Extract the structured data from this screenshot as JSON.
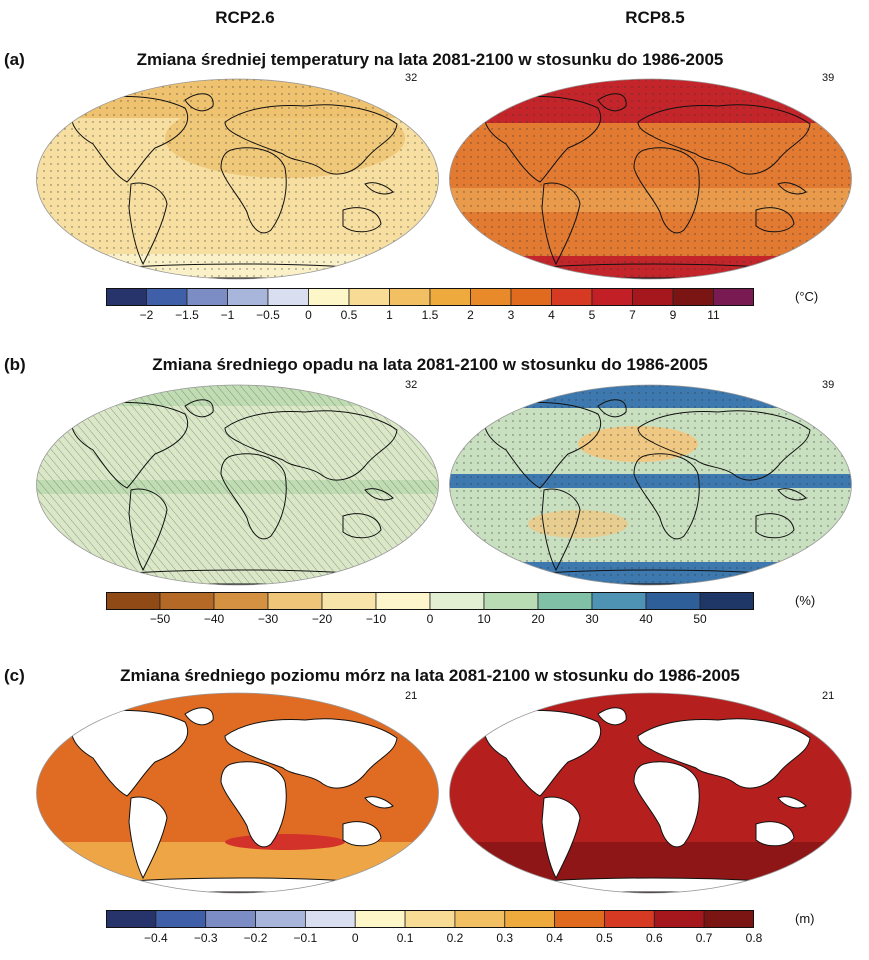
{
  "scenarios": {
    "left": "RCP2.6",
    "right": "RCP8.5"
  },
  "panels": [
    {
      "id": "a",
      "label": "(a)",
      "title": "Zmiana średniej temperatury na lata 2081-2100 w stosunku do 1986-2005",
      "model_counts": [
        "32",
        "39"
      ],
      "unit": "(°C)",
      "colorbar": {
        "colors": [
          "#27336b",
          "#3f5fa8",
          "#7c8cc4",
          "#a9b6db",
          "#d9dff0",
          "#fdf6c8",
          "#f8dc96",
          "#f2c062",
          "#eeaa3c",
          "#e88a2a",
          "#e06a1e",
          "#d63a22",
          "#c22026",
          "#a5171d",
          "#7a1513",
          "#7a1a52"
        ],
        "ticks": [
          "−2",
          "−1.5",
          "−1",
          "−0.5",
          "0",
          "0.5",
          "1",
          "1.5",
          "2",
          "3",
          "4",
          "5",
          "7",
          "9",
          "11"
        ]
      },
      "map_colors": {
        "left_base": "#f6dfa0",
        "left_accent": "#efc270",
        "left_cool": "#fbf1c8",
        "right_base": "#e27a32",
        "right_hot": "#c3252a",
        "right_warm": "#e99a4a"
      }
    },
    {
      "id": "b",
      "label": "(b)",
      "title": "Zmiana średniego opadu na lata 2081-2100 w stosunku do 1986-2005",
      "model_counts": [
        "32",
        "39"
      ],
      "unit": "(%)",
      "colorbar": {
        "colors": [
          "#8f4a16",
          "#b46a26",
          "#d49142",
          "#efc57a",
          "#f8e4a8",
          "#fdf6cc",
          "#e2efd2",
          "#b9dcb4",
          "#7fc0a6",
          "#4f93b4",
          "#2e5f99",
          "#1f3766"
        ],
        "ticks": [
          "−50",
          "−40",
          "−30",
          "−20",
          "−10",
          "0",
          "10",
          "20",
          "30",
          "40",
          "50"
        ]
      },
      "map_colors": {
        "left_base": "#dbe8c8",
        "left_accent": "#bfdcb2",
        "right_base": "#c8e0c0",
        "right_wet": "#3d79ae",
        "right_dry": "#efc883"
      }
    },
    {
      "id": "c",
      "label": "(c)",
      "title": "Zmiana średniego poziomu mórz na lata 2081-2100 w stosunku do 1986-2005",
      "model_counts": [
        "21",
        "21"
      ],
      "unit": "(m)",
      "colorbar": {
        "colors": [
          "#27336b",
          "#3f5fa8",
          "#7c8cc4",
          "#a9b6db",
          "#d9dff0",
          "#fdf6c8",
          "#f8dc96",
          "#f2c062",
          "#eeaa3c",
          "#e06a1e",
          "#d63a22",
          "#a5171d",
          "#7a1513"
        ],
        "ticks": [
          "−0.4",
          "−0.3",
          "−0.2",
          "−0.1",
          "0",
          "0.1",
          "0.2",
          "0.3",
          "0.4",
          "0.5",
          "0.6",
          "0.7",
          "0.8"
        ]
      },
      "map_colors": {
        "left_base": "#e06c24",
        "left_warm": "#eea545",
        "left_hot": "#d3322a",
        "right_base": "#b5201f",
        "right_dark": "#8e1616",
        "land": "#ffffff"
      }
    }
  ]
}
